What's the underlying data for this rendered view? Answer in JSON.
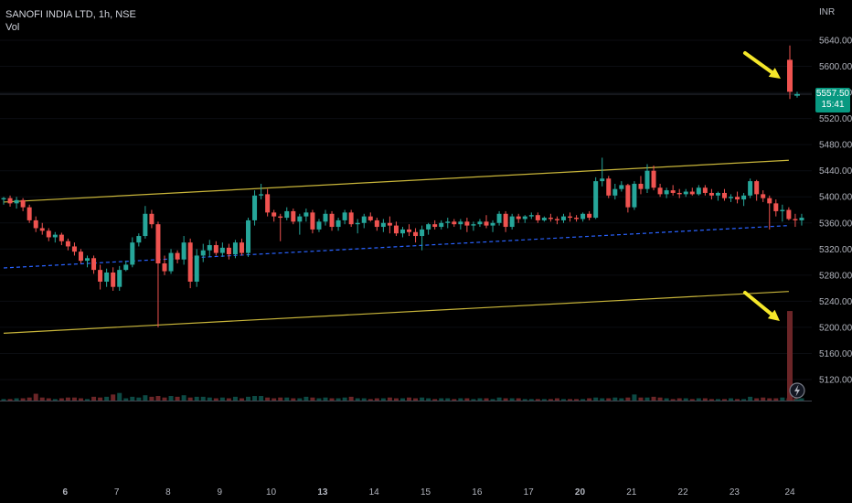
{
  "header": {
    "symbol": "SANOFI INDIA LTD, 1h, NSE",
    "volume_label": "Vol",
    "currency": "INR"
  },
  "price_tag": {
    "price": "5557.50",
    "countdown": "15:41"
  },
  "colors": {
    "up": "#26a69a",
    "down": "#ef5350",
    "vol_up": "#0d4a44",
    "vol_down": "#6b2527",
    "channel": "#c8b53a",
    "midline": "#2962ff",
    "arrow": "#f5e72a",
    "price_tag": "#089981"
  },
  "chart_data": {
    "type": "candlestick",
    "title": "SANOFI INDIA LTD, 1h, NSE",
    "y_axis": {
      "min": 5100,
      "max": 5680,
      "ticks": [
        "5640.00",
        "5600.00",
        "5560.00",
        "5520.00",
        "5480.00",
        "5440.00",
        "5400.00",
        "5360.00",
        "5320.00",
        "5280.00",
        "5240.00",
        "5200.00",
        "5160.00",
        "5120.00"
      ],
      "tick_values": [
        5640,
        5600,
        5560,
        5520,
        5480,
        5440,
        5400,
        5360,
        5320,
        5280,
        5240,
        5200,
        5160,
        5120
      ]
    },
    "x_axis": {
      "ticks": [
        {
          "label": "6",
          "bold": true,
          "index": 7
        },
        {
          "label": "7",
          "bold": false,
          "index": 15
        },
        {
          "label": "8",
          "bold": false,
          "index": 23
        },
        {
          "label": "9",
          "bold": false,
          "index": 31
        },
        {
          "label": "10",
          "bold": false,
          "index": 39
        },
        {
          "label": "13",
          "bold": true,
          "index": 47
        },
        {
          "label": "14",
          "bold": false,
          "index": 55
        },
        {
          "label": "15",
          "bold": false,
          "index": 63
        },
        {
          "label": "16",
          "bold": false,
          "index": 71
        },
        {
          "label": "17",
          "bold": false,
          "index": 79
        },
        {
          "label": "20",
          "bold": true,
          "index": 87
        },
        {
          "label": "21",
          "bold": false,
          "index": 95
        },
        {
          "label": "22",
          "bold": false,
          "index": 103
        },
        {
          "label": "23",
          "bold": false,
          "index": 111
        },
        {
          "label": "24",
          "bold": false,
          "index": 119
        }
      ]
    },
    "last_price": 5557.5,
    "candles": [
      [
        5396,
        5400,
        5388,
        5398,
        2
      ],
      [
        5398,
        5402,
        5385,
        5390,
        2
      ],
      [
        5390,
        5400,
        5382,
        5395,
        3
      ],
      [
        5395,
        5398,
        5378,
        5384,
        3
      ],
      [
        5384,
        5388,
        5360,
        5364,
        4
      ],
      [
        5364,
        5370,
        5346,
        5352,
        9
      ],
      [
        5352,
        5360,
        5342,
        5348,
        4
      ],
      [
        5348,
        5352,
        5332,
        5338,
        3
      ],
      [
        5338,
        5346,
        5330,
        5342,
        2
      ],
      [
        5342,
        5345,
        5326,
        5332,
        3
      ],
      [
        5332,
        5336,
        5318,
        5324,
        4
      ],
      [
        5324,
        5330,
        5310,
        5316,
        4
      ],
      [
        5316,
        5320,
        5298,
        5302,
        3
      ],
      [
        5302,
        5310,
        5292,
        5306,
        2
      ],
      [
        5306,
        5310,
        5282,
        5288,
        5
      ],
      [
        5288,
        5296,
        5258,
        5270,
        4
      ],
      [
        5270,
        5290,
        5262,
        5284,
        5
      ],
      [
        5284,
        5292,
        5256,
        5262,
        8
      ],
      [
        5262,
        5294,
        5256,
        5288,
        10
      ],
      [
        5288,
        5302,
        5286,
        5296,
        3
      ],
      [
        5296,
        5338,
        5292,
        5330,
        5
      ],
      [
        5330,
        5344,
        5324,
        5340,
        4
      ],
      [
        5340,
        5386,
        5336,
        5374,
        7
      ],
      [
        5374,
        5380,
        5352,
        5358,
        5
      ],
      [
        5358,
        5362,
        5200,
        5298,
        6
      ],
      [
        5298,
        5310,
        5280,
        5286,
        4
      ],
      [
        5286,
        5320,
        5282,
        5314,
        6
      ],
      [
        5314,
        5318,
        5298,
        5304,
        5
      ],
      [
        5304,
        5340,
        5296,
        5330,
        7
      ],
      [
        5330,
        5336,
        5260,
        5270,
        4
      ],
      [
        5270,
        5320,
        5262,
        5310,
        5
      ],
      [
        5310,
        5328,
        5300,
        5318,
        5
      ],
      [
        5318,
        5334,
        5308,
        5326,
        4
      ],
      [
        5326,
        5332,
        5310,
        5314,
        3
      ],
      [
        5314,
        5330,
        5308,
        5322,
        4
      ],
      [
        5322,
        5328,
        5304,
        5312,
        3
      ],
      [
        5312,
        5334,
        5306,
        5330,
        5
      ],
      [
        5330,
        5336,
        5310,
        5314,
        3
      ],
      [
        5314,
        5368,
        5308,
        5364,
        5
      ],
      [
        5364,
        5410,
        5356,
        5402,
        6
      ],
      [
        5402,
        5420,
        5396,
        5404,
        6
      ],
      [
        5404,
        5412,
        5370,
        5376,
        4
      ],
      [
        5376,
        5380,
        5362,
        5370,
        3
      ],
      [
        5370,
        5374,
        5332,
        5368,
        4
      ],
      [
        5368,
        5384,
        5364,
        5378,
        4
      ],
      [
        5378,
        5382,
        5358,
        5362,
        3
      ],
      [
        5362,
        5374,
        5342,
        5370,
        3
      ],
      [
        5370,
        5382,
        5362,
        5376,
        5
      ],
      [
        5376,
        5380,
        5344,
        5350,
        4
      ],
      [
        5350,
        5366,
        5346,
        5362,
        3
      ],
      [
        5362,
        5380,
        5356,
        5374,
        4
      ],
      [
        5374,
        5378,
        5348,
        5354,
        3
      ],
      [
        5354,
        5368,
        5348,
        5364,
        3
      ],
      [
        5364,
        5380,
        5358,
        5376,
        4
      ],
      [
        5376,
        5380,
        5354,
        5358,
        5
      ],
      [
        5358,
        5366,
        5344,
        5360,
        3
      ],
      [
        5360,
        5374,
        5352,
        5370,
        3
      ],
      [
        5370,
        5376,
        5362,
        5364,
        2
      ],
      [
        5364,
        5368,
        5348,
        5354,
        3
      ],
      [
        5354,
        5366,
        5346,
        5360,
        3
      ],
      [
        5360,
        5370,
        5344,
        5356,
        4
      ],
      [
        5356,
        5362,
        5340,
        5344,
        3
      ],
      [
        5344,
        5354,
        5338,
        5350,
        3
      ],
      [
        5350,
        5358,
        5340,
        5346,
        4
      ],
      [
        5346,
        5352,
        5330,
        5340,
        3
      ],
      [
        5340,
        5356,
        5318,
        5350,
        4
      ],
      [
        5350,
        5360,
        5342,
        5358,
        3
      ],
      [
        5358,
        5364,
        5350,
        5354,
        2
      ],
      [
        5354,
        5364,
        5350,
        5360,
        3
      ],
      [
        5360,
        5368,
        5352,
        5362,
        3
      ],
      [
        5362,
        5366,
        5354,
        5358,
        2
      ],
      [
        5358,
        5366,
        5350,
        5362,
        3
      ],
      [
        5362,
        5368,
        5346,
        5356,
        3
      ],
      [
        5356,
        5362,
        5348,
        5358,
        2
      ],
      [
        5358,
        5366,
        5354,
        5362,
        3
      ],
      [
        5362,
        5372,
        5352,
        5356,
        3
      ],
      [
        5356,
        5364,
        5346,
        5360,
        2
      ],
      [
        5360,
        5378,
        5356,
        5374,
        4
      ],
      [
        5374,
        5378,
        5346,
        5354,
        3
      ],
      [
        5354,
        5374,
        5350,
        5370,
        3
      ],
      [
        5370,
        5374,
        5360,
        5366,
        3
      ],
      [
        5366,
        5372,
        5360,
        5370,
        2
      ],
      [
        5370,
        5376,
        5366,
        5372,
        2
      ],
      [
        5372,
        5376,
        5360,
        5364,
        2
      ],
      [
        5364,
        5370,
        5362,
        5368,
        2
      ],
      [
        5368,
        5374,
        5362,
        5366,
        2
      ],
      [
        5366,
        5370,
        5358,
        5364,
        3
      ],
      [
        5364,
        5374,
        5360,
        5370,
        2
      ],
      [
        5370,
        5376,
        5362,
        5368,
        2
      ],
      [
        5368,
        5372,
        5362,
        5366,
        2
      ],
      [
        5366,
        5376,
        5362,
        5374,
        2
      ],
      [
        5374,
        5378,
        5364,
        5368,
        3
      ],
      [
        5368,
        5430,
        5366,
        5424,
        4
      ],
      [
        5424,
        5460,
        5416,
        5428,
        3
      ],
      [
        5428,
        5432,
        5398,
        5402,
        3
      ],
      [
        5402,
        5420,
        5396,
        5412,
        4
      ],
      [
        5412,
        5424,
        5408,
        5418,
        3
      ],
      [
        5418,
        5420,
        5376,
        5384,
        4
      ],
      [
        5384,
        5424,
        5380,
        5420,
        8
      ],
      [
        5420,
        5432,
        5404,
        5412,
        4
      ],
      [
        5412,
        5450,
        5406,
        5440,
        4
      ],
      [
        5440,
        5448,
        5410,
        5414,
        5
      ],
      [
        5414,
        5420,
        5400,
        5404,
        4
      ],
      [
        5404,
        5414,
        5398,
        5410,
        3
      ],
      [
        5410,
        5418,
        5402,
        5406,
        2
      ],
      [
        5406,
        5412,
        5398,
        5404,
        3
      ],
      [
        5404,
        5412,
        5400,
        5408,
        3
      ],
      [
        5408,
        5414,
        5402,
        5404,
        2
      ],
      [
        5404,
        5418,
        5402,
        5414,
        3
      ],
      [
        5414,
        5418,
        5402,
        5406,
        3
      ],
      [
        5406,
        5412,
        5396,
        5402,
        2
      ],
      [
        5402,
        5408,
        5394,
        5406,
        2
      ],
      [
        5406,
        5412,
        5394,
        5398,
        2
      ],
      [
        5398,
        5404,
        5392,
        5400,
        3
      ],
      [
        5400,
        5408,
        5390,
        5396,
        2
      ],
      [
        5396,
        5406,
        5386,
        5402,
        2
      ],
      [
        5402,
        5428,
        5398,
        5424,
        5
      ],
      [
        5424,
        5426,
        5394,
        5404,
        3
      ],
      [
        5404,
        5410,
        5392,
        5398,
        4
      ],
      [
        5398,
        5402,
        5350,
        5390,
        3
      ],
      [
        5390,
        5396,
        5370,
        5378,
        3
      ],
      [
        5378,
        5388,
        5362,
        5380,
        4
      ],
      [
        5380,
        5384,
        5364,
        5366,
        3
      ],
      [
        5366,
        5374,
        5354,
        5364,
        3
      ],
      [
        5364,
        5374,
        5356,
        5368,
        3
      ]
    ],
    "last_candles": [
      [
        5610,
        5632,
        5550,
        5561,
        118
      ],
      [
        5555,
        5561,
        5552,
        5557.5,
        2
      ]
    ],
    "lines": {
      "channel_upper": [
        [
          0,
          5392
        ],
        [
          122,
          5456
        ]
      ],
      "channel_lower": [
        [
          0,
          5191
        ],
        [
          122,
          5255
        ]
      ],
      "midline": [
        [
          0,
          5291
        ],
        [
          122,
          5356
        ]
      ]
    }
  }
}
